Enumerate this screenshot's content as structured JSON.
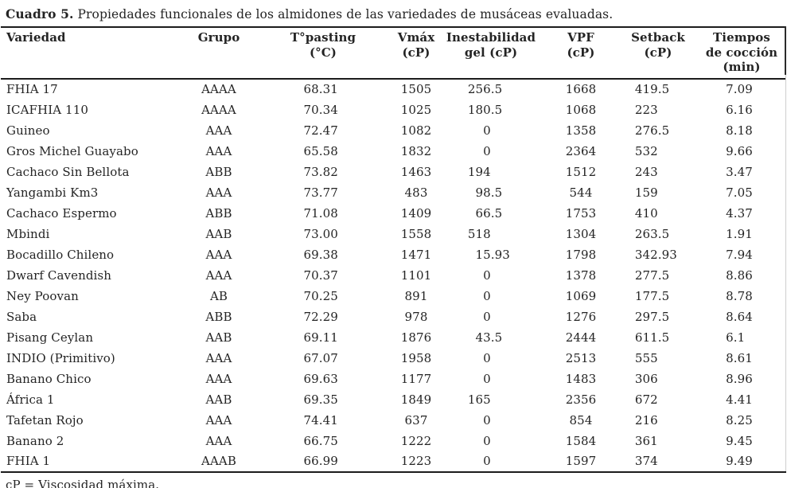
{
  "title": {
    "label": "Cuadro 5.",
    "text": " Propiedades funcionales de los almidones de las variedades de musáceas evaluadas."
  },
  "table": {
    "headers": [
      {
        "name": "variedad",
        "lines": [
          "Variedad"
        ]
      },
      {
        "name": "grupo",
        "lines": [
          "Grupo"
        ]
      },
      {
        "name": "t-pasting",
        "lines": [
          "T°pasting",
          "(°C)"
        ]
      },
      {
        "name": "vmax",
        "lines": [
          "Vmáx",
          "(cP)"
        ]
      },
      {
        "name": "inestabilidad",
        "lines": [
          "Inestabilidad",
          "gel (cP)"
        ]
      },
      {
        "name": "vpf",
        "lines": [
          "VPF",
          "(cP)"
        ]
      },
      {
        "name": "setback",
        "lines": [
          "Setback",
          "(cP)"
        ]
      },
      {
        "name": "tiempos",
        "lines": [
          "Tiempos",
          "de cocción",
          "(min)"
        ]
      }
    ],
    "rows": [
      [
        "FHIA 17",
        "AAAA",
        "68.31",
        "1505",
        "256.5",
        "1668",
        "419.5",
        "7.09"
      ],
      [
        "ICAFHIA 110",
        "AAAA",
        "70.34",
        "1025",
        "180.5",
        "1068",
        "223",
        "6.16"
      ],
      [
        "Guineo",
        "AAA",
        "72.47",
        "1082",
        "0",
        "1358",
        "276.5",
        "8.18"
      ],
      [
        "Gros Michel Guayabo",
        "AAA",
        "65.58",
        "1832",
        "0",
        "2364",
        "532",
        "9.66"
      ],
      [
        "Cachaco Sin Bellota",
        "ABB",
        "73.82",
        "1463",
        "194",
        "1512",
        "243",
        "3.47"
      ],
      [
        "Yangambi Km3",
        "AAA",
        "73.77",
        "483",
        "98.5",
        "544",
        "159",
        "7.05"
      ],
      [
        "Cachaco Espermo",
        "ABB",
        "71.08",
        "1409",
        "66.5",
        "1753",
        "410",
        "4.37"
      ],
      [
        "Mbindi",
        "AAB",
        "73.00",
        "1558",
        "518",
        "1304",
        "263.5",
        "1.91"
      ],
      [
        "Bocadillo Chileno",
        "AAA",
        "69.38",
        "1471",
        "15.93",
        "1798",
        "342.93",
        "7.94"
      ],
      [
        "Dwarf Cavendish",
        "AAA",
        "70.37",
        "1101",
        "0",
        "1378",
        "277.5",
        "8.86"
      ],
      [
        "Ney Poovan",
        "AB",
        "70.25",
        "891",
        "0",
        "1069",
        "177.5",
        "8.78"
      ],
      [
        "Saba",
        "ABB",
        "72.29",
        "978",
        "0",
        "1276",
        "297.5",
        "8.64"
      ],
      [
        "Pisang Ceylan",
        "AAB",
        "69.11",
        "1876",
        "43.5",
        "2444",
        "611.5",
        "6.1"
      ],
      [
        "INDIO (Primitivo)",
        "AAA",
        "67.07",
        "1958",
        "0",
        "2513",
        "555",
        "8.61"
      ],
      [
        "Banano Chico",
        "AAA",
        "69.63",
        "1177",
        "0",
        "1483",
        "306",
        "8.96"
      ],
      [
        "África 1",
        "AAB",
        "69.35",
        "1849",
        "165",
        "2356",
        "672",
        "4.41"
      ],
      [
        "Tafetan Rojo",
        "AAA",
        "74.41",
        "637",
        "0",
        "854",
        "216",
        "8.25"
      ],
      [
        "Banano 2",
        "AAA",
        "66.75",
        "1222",
        "0",
        "1584",
        "361",
        "9.45"
      ],
      [
        "FHIA 1",
        "AAAB",
        "66.99",
        "1223",
        "0",
        "1597",
        "374",
        "9.49"
      ]
    ]
  },
  "footnote": "cP = Viscosidad máxima.",
  "colors": {
    "text": "#242424",
    "border": "#1c1c1c",
    "background": "#ffffff"
  }
}
